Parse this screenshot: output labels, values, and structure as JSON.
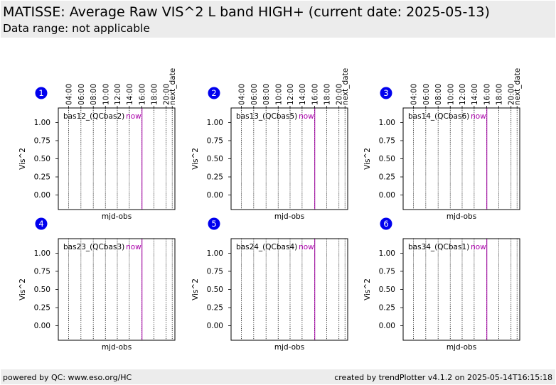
{
  "header": {
    "title": "MATISSE: Average Raw VIS^2 L band HIGH+ (current date: 2025-05-13)",
    "subtitle": "Data range: not applicable"
  },
  "footer": {
    "left": "powered by QC: www.eso.org/HC",
    "right": "created by trendPlotter v4.1.2 on 2025-05-14T16:15:18"
  },
  "colors": {
    "badge": "#0000ee",
    "now_line": "#aa00aa",
    "header_band": "#ececec"
  },
  "chart_data": [
    {
      "type": "line",
      "index": "1",
      "label": "bas12_(QCbas2)",
      "now_label": "now",
      "ylabel": "Vis^2",
      "xlabel": "mjd-obs",
      "top_ticks": [
        "04:00",
        "06:00",
        "08:00",
        "10:00",
        "12:00",
        "14:00",
        "16:00",
        "18:00",
        "20:00",
        "next_date"
      ],
      "yticks": [
        "0.00",
        "0.25",
        "0.50",
        "0.75",
        "1.00"
      ],
      "ylim": [
        -0.2,
        1.2
      ],
      "series": []
    },
    {
      "type": "line",
      "index": "2",
      "label": "bas13_(QCbas5)",
      "now_label": "now",
      "ylabel": "Vis^2",
      "xlabel": "mjd-obs",
      "top_ticks": [
        "04:00",
        "06:00",
        "08:00",
        "10:00",
        "12:00",
        "14:00",
        "16:00",
        "18:00",
        "20:00",
        "next_date"
      ],
      "yticks": [
        "0.00",
        "0.25",
        "0.50",
        "0.75",
        "1.00"
      ],
      "ylim": [
        -0.2,
        1.2
      ],
      "series": []
    },
    {
      "type": "line",
      "index": "3",
      "label": "bas14_(QCbas6)",
      "now_label": "now",
      "ylabel": "Vis^2",
      "xlabel": "mjd-obs",
      "top_ticks": [
        "04:00",
        "06:00",
        "08:00",
        "10:00",
        "12:00",
        "14:00",
        "16:00",
        "18:00",
        "20:00",
        "next_date"
      ],
      "yticks": [
        "0.00",
        "0.25",
        "0.50",
        "0.75",
        "1.00"
      ],
      "ylim": [
        -0.2,
        1.2
      ],
      "series": []
    },
    {
      "type": "line",
      "index": "4",
      "label": "bas23_(QCbas3)",
      "now_label": "now",
      "ylabel": "Vis^2",
      "xlabel": "mjd-obs",
      "top_ticks": [],
      "yticks": [
        "0.00",
        "0.25",
        "0.50",
        "0.75",
        "1.00"
      ],
      "ylim": [
        -0.2,
        1.2
      ],
      "series": []
    },
    {
      "type": "line",
      "index": "5",
      "label": "bas24_(QCbas4)",
      "now_label": "now",
      "ylabel": "Vis^2",
      "xlabel": "mjd-obs",
      "top_ticks": [],
      "yticks": [
        "0.00",
        "0.25",
        "0.50",
        "0.75",
        "1.00"
      ],
      "ylim": [
        -0.2,
        1.2
      ],
      "series": []
    },
    {
      "type": "line",
      "index": "6",
      "label": "bas34_(QCbas1)",
      "now_label": "now",
      "ylabel": "Vis^2",
      "xlabel": "mjd-obs",
      "top_ticks": [],
      "yticks": [
        "0.00",
        "0.25",
        "0.50",
        "0.75",
        "1.00"
      ],
      "ylim": [
        -0.2,
        1.2
      ],
      "series": []
    }
  ]
}
